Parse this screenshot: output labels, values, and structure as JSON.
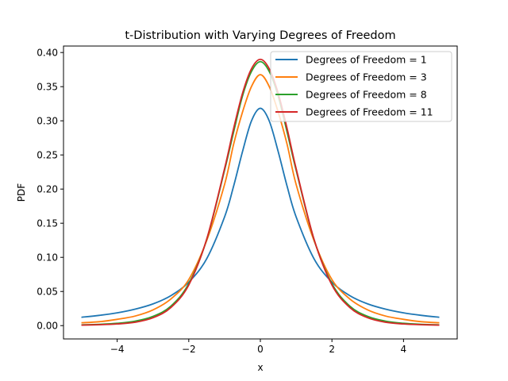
{
  "chart_data": {
    "type": "line",
    "title": "t-Distribution with Varying Degrees of Freedom",
    "xlabel": "x",
    "ylabel": "PDF",
    "xlim": [
      -5.5,
      5.5
    ],
    "ylim": [
      -0.0195,
      0.4095
    ],
    "xticks": [
      -4,
      -2,
      0,
      2,
      4
    ],
    "xtick_labels": [
      "−4",
      "−2",
      "0",
      "2",
      "4"
    ],
    "yticks": [
      0.0,
      0.05,
      0.1,
      0.15,
      0.2,
      0.25,
      0.3,
      0.35,
      0.4
    ],
    "ytick_labels": [
      "0.00",
      "0.05",
      "0.10",
      "0.15",
      "0.20",
      "0.25",
      "0.30",
      "0.35",
      "0.40"
    ],
    "grid": false,
    "legend_position": "top-right",
    "x": [
      -5,
      -4.5,
      -4,
      -3.5,
      -3,
      -2.5,
      -2,
      -1.5,
      -1,
      -0.75,
      -0.5,
      -0.25,
      0,
      0.25,
      0.5,
      0.75,
      1,
      1.5,
      2,
      2.5,
      3,
      3.5,
      4,
      4.5,
      5
    ],
    "series": [
      {
        "name": "Degrees of Freedom = 1",
        "color": "#1f77b4",
        "values": [
          0.0122,
          0.015,
          0.0187,
          0.0241,
          0.0318,
          0.0439,
          0.0637,
          0.0979,
          0.1592,
          0.2037,
          0.2546,
          0.2996,
          0.3183,
          0.2996,
          0.2546,
          0.2037,
          0.1592,
          0.0979,
          0.0637,
          0.0439,
          0.0318,
          0.0241,
          0.0187,
          0.015,
          0.0122
        ]
      },
      {
        "name": "Degrees of Freedom = 3",
        "color": "#ff7f0e",
        "values": [
          0.0042,
          0.0057,
          0.0092,
          0.014,
          0.023,
          0.039,
          0.0675,
          0.1245,
          0.2067,
          0.265,
          0.3125,
          0.35,
          0.3676,
          0.35,
          0.3125,
          0.265,
          0.2067,
          0.1245,
          0.0675,
          0.039,
          0.023,
          0.014,
          0.0092,
          0.0057,
          0.0042
        ]
      },
      {
        "name": "Degrees of Freedom = 8",
        "color": "#2ca02c",
        "values": [
          0.0011,
          0.0019,
          0.0034,
          0.0065,
          0.0135,
          0.0285,
          0.0615,
          0.126,
          0.2276,
          0.2829,
          0.336,
          0.372,
          0.3867,
          0.372,
          0.336,
          0.2829,
          0.2276,
          0.126,
          0.0615,
          0.0285,
          0.0135,
          0.0065,
          0.0034,
          0.0019,
          0.0011
        ]
      },
      {
        "name": "Degrees of Freedom = 11",
        "color": "#d62728",
        "values": [
          0.0007,
          0.0013,
          0.0024,
          0.0049,
          0.0115,
          0.0265,
          0.0595,
          0.1265,
          0.23,
          0.288,
          0.34,
          0.376,
          0.39,
          0.376,
          0.34,
          0.288,
          0.23,
          0.1265,
          0.0595,
          0.0265,
          0.0115,
          0.0049,
          0.0024,
          0.0013,
          0.0007
        ]
      }
    ]
  }
}
